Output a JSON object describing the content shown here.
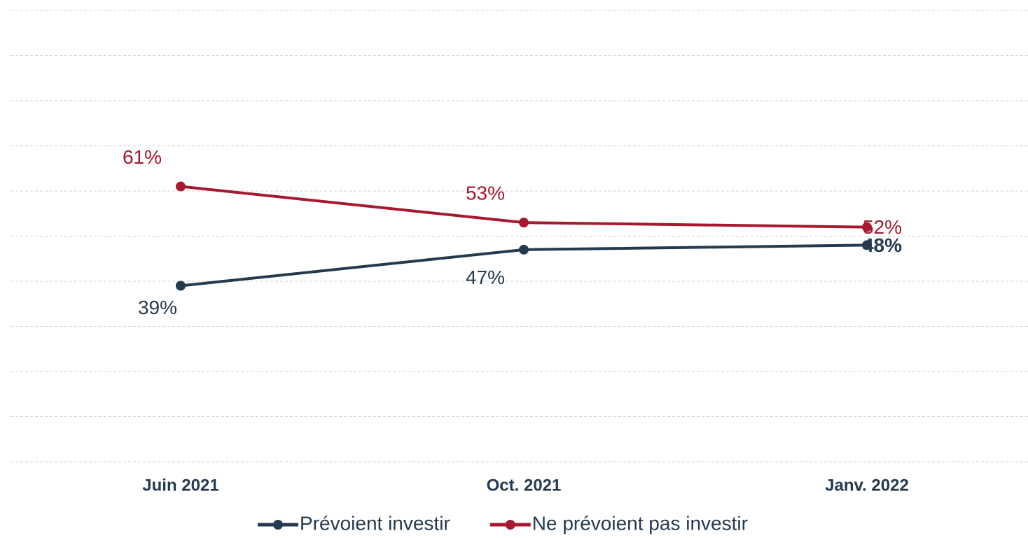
{
  "chart_data": {
    "type": "line",
    "categories": [
      "Juin 2021",
      "Oct. 2021",
      "Janv. 2022"
    ],
    "series": [
      {
        "name": "Prévoient investir",
        "color": "#243a4f",
        "values": [
          39,
          47,
          48
        ],
        "value_labels": [
          "39%",
          "47%",
          "48%"
        ]
      },
      {
        "name": "Ne prévoient pas investir",
        "color": "#a6192e",
        "values": [
          61,
          53,
          52
        ],
        "value_labels": [
          "61%",
          "53%",
          "52%"
        ]
      }
    ],
    "ylim": [
      0,
      100
    ],
    "yticks": [
      0,
      10,
      20,
      30,
      40,
      50,
      60,
      70,
      80,
      90,
      100
    ],
    "grid": true
  }
}
